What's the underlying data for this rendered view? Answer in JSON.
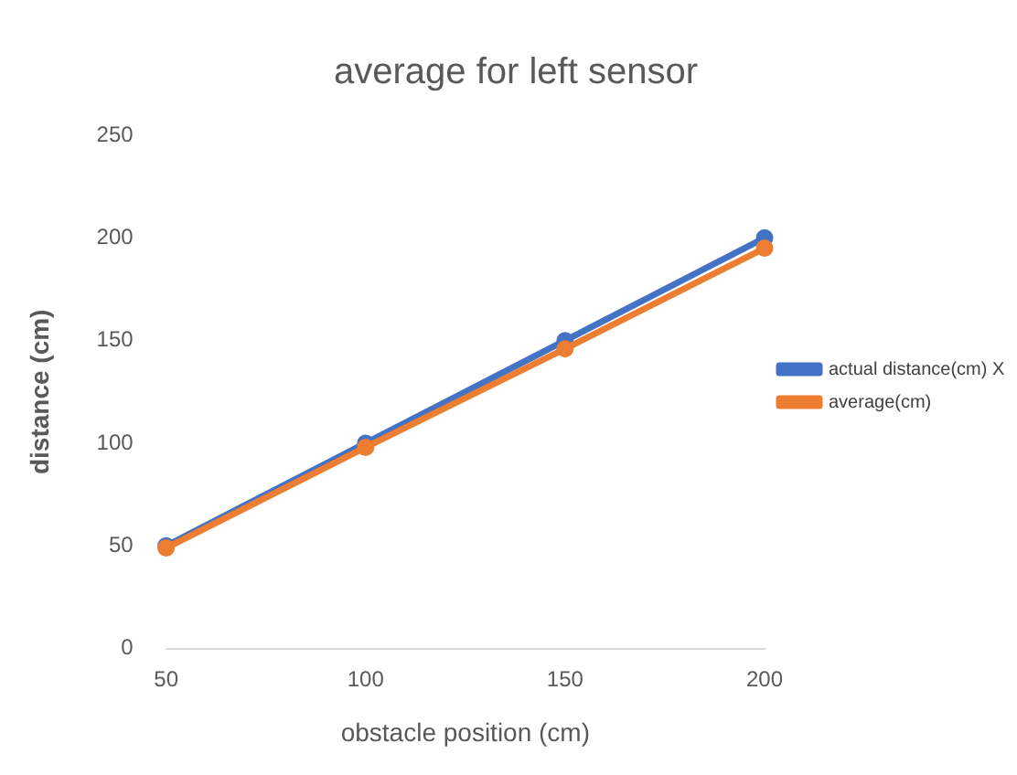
{
  "chart_data": {
    "type": "line",
    "title": "average for left sensor",
    "xlabel": "obstacle position (cm)",
    "ylabel": "distance (cm)",
    "categories": [
      "50",
      "100",
      "150",
      "200"
    ],
    "series": [
      {
        "name": "actual distance(cm) X",
        "color": "#4472c4",
        "values": [
          50,
          100,
          150,
          200
        ]
      },
      {
        "name": "average(cm)",
        "color": "#ed7d31",
        "values": [
          49,
          98,
          146,
          195
        ]
      }
    ],
    "ylim": [
      0,
      250
    ],
    "yticks": [
      0,
      50,
      100,
      150,
      200,
      250
    ],
    "grid": false,
    "legend": "right",
    "marker": "circle",
    "line_style": "solid"
  }
}
